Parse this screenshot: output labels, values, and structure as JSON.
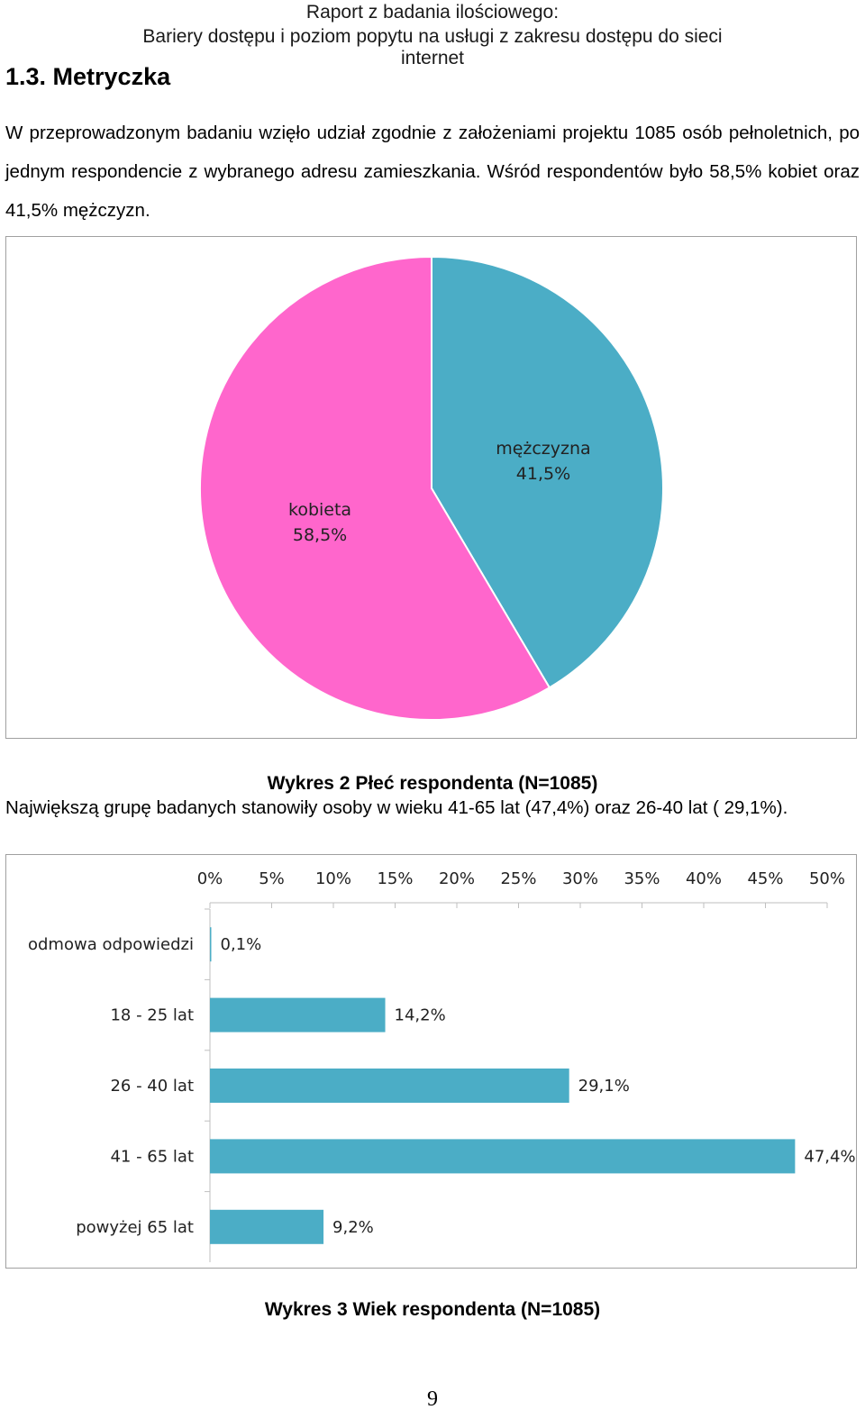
{
  "header": {
    "line1": "Raport z badania ilościowego:",
    "line2": "Bariery dostępu i poziom popytu na usługi z zakresu dostępu do sieci internet"
  },
  "section_title": "1.3. Metryczka",
  "intro": {
    "line1": "W przeprowadzonym badaniu wzięło udział zgodnie z założeniami projektu 1085 osób pełnoletnich, po",
    "line2": "jednym respondencie z wybranego adresu zamieszkania. Wśród respondentów było 58,5% kobiet oraz",
    "line3": "41,5% mężczyzn."
  },
  "caption2": "Wykres 2 Płeć respondenta (N=1085)",
  "paragraph_age": "Największą grupę badanych stanowiły osoby w wieku 41-65 lat (47,4%) oraz 26-40 lat ( 29,1%).",
  "caption3": "Wykres 3 Wiek respondenta  (N=1085)",
  "page_number": "9",
  "colors": {
    "pink": "#ff66cc",
    "teal": "#4badc6"
  },
  "chart_data": [
    {
      "type": "pie",
      "title": "",
      "slices": [
        {
          "label": "mężczyzna",
          "value": 41.5,
          "value_label": "41,5%",
          "color": "#4badc6"
        },
        {
          "label": "kobieta",
          "value": 58.5,
          "value_label": "58,5%",
          "color": "#ff66cc"
        }
      ]
    },
    {
      "type": "bar",
      "orientation": "horizontal",
      "title": "",
      "categories": [
        "odmowa odpowiedzi",
        "18 - 25 lat",
        "26 - 40 lat",
        "41 - 65 lat",
        "powyżej 65 lat"
      ],
      "values": [
        0.1,
        14.2,
        29.1,
        47.4,
        9.2
      ],
      "value_labels": [
        "0,1%",
        "14,2%",
        "29,1%",
        "47,4%",
        "9,2%"
      ],
      "xlim": [
        0,
        50
      ],
      "x_ticks": [
        0,
        5,
        10,
        15,
        20,
        25,
        30,
        35,
        40,
        45,
        50
      ],
      "x_tick_labels": [
        "0%",
        "5%",
        "10%",
        "15%",
        "20%",
        "25%",
        "30%",
        "35%",
        "40%",
        "45%",
        "50%"
      ],
      "axis_position": "top",
      "color": "#4badc6",
      "grid": false
    }
  ]
}
